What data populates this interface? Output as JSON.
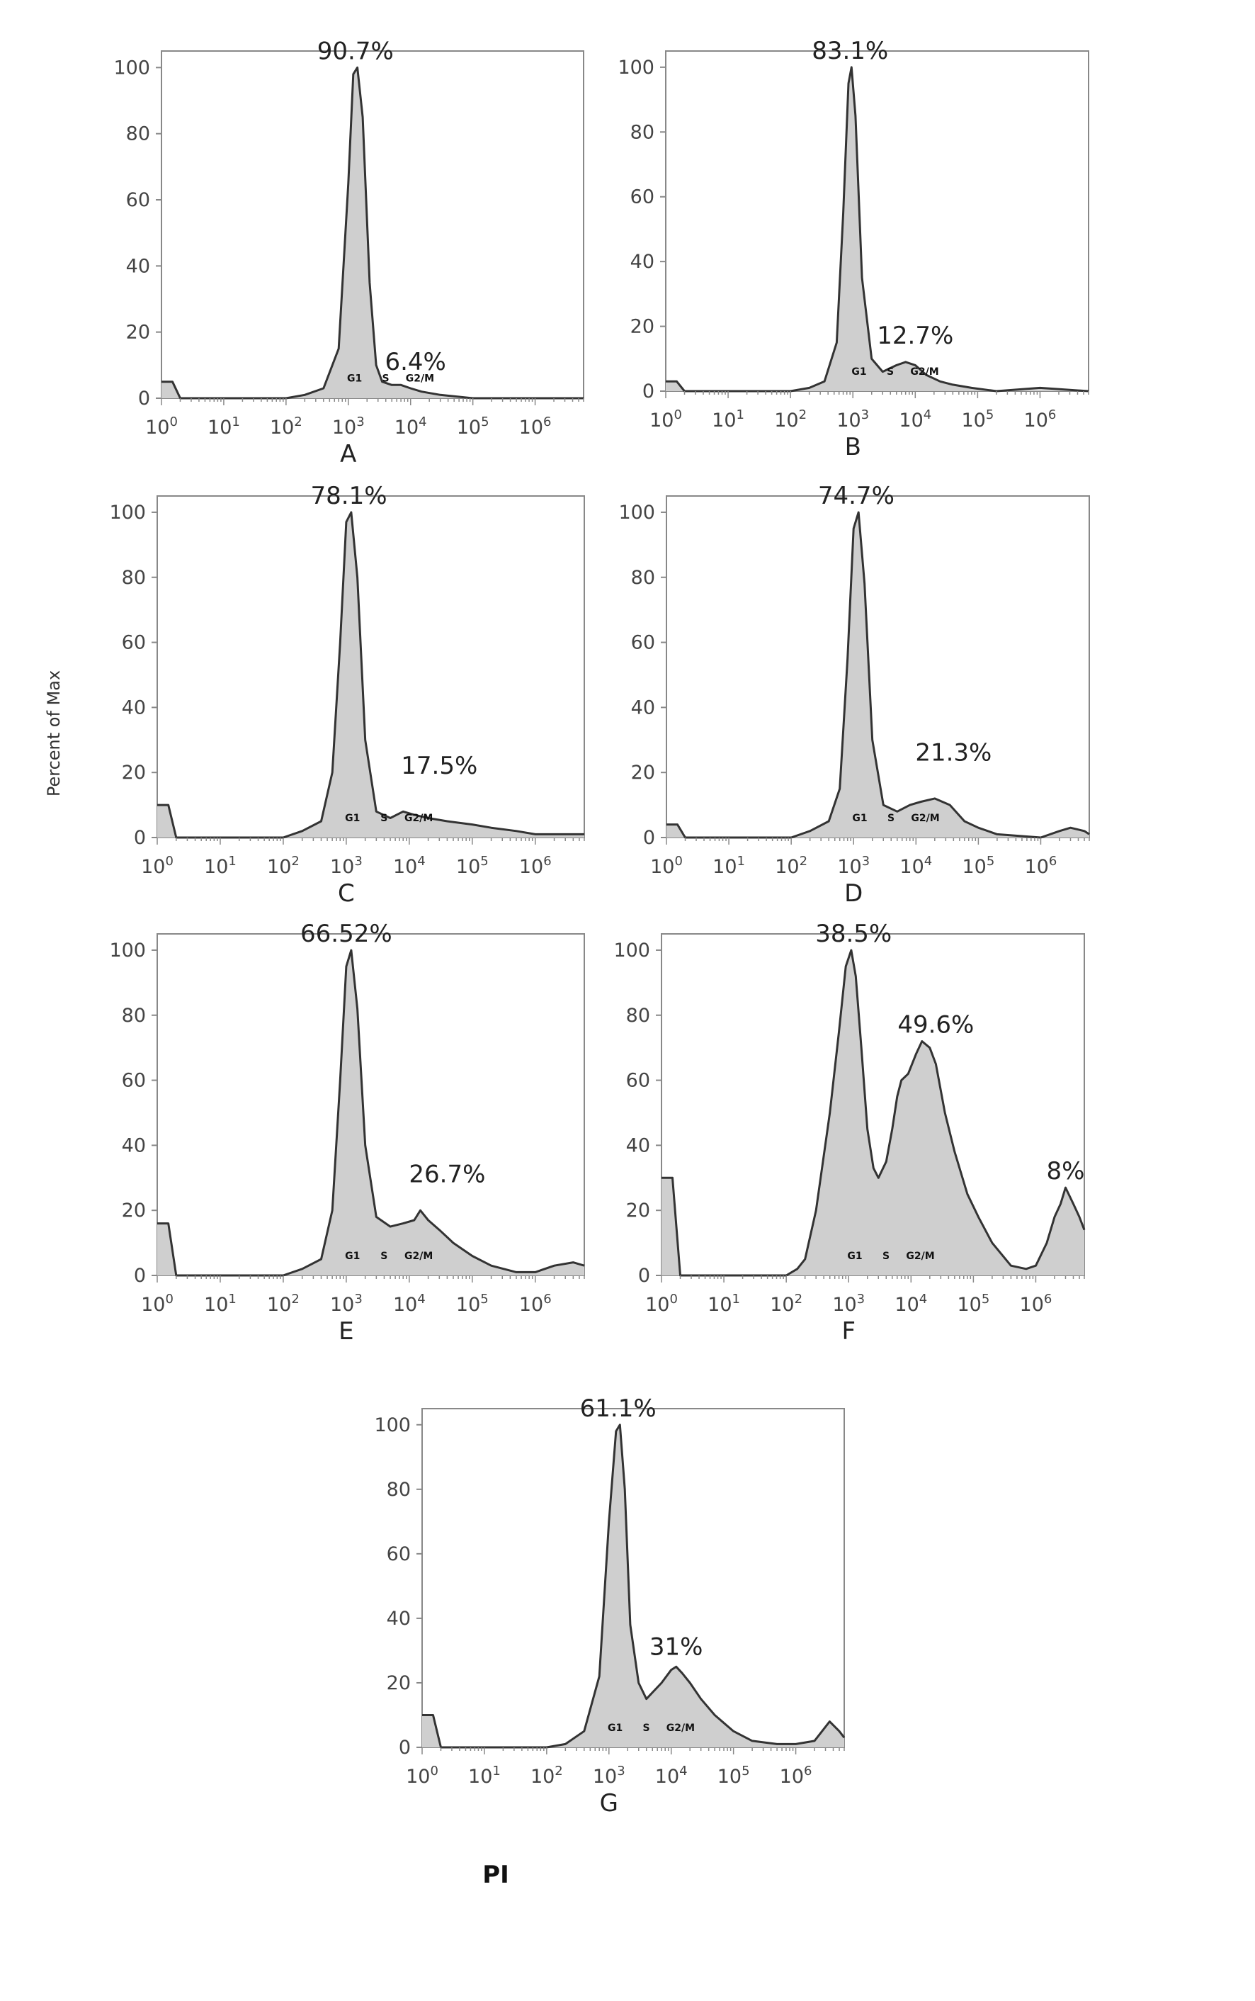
{
  "figure": {
    "y_axis_label": "Percent of Max",
    "x_axis_label": "PI"
  },
  "chart_data": [
    {
      "type": "area",
      "panel_label": "A",
      "ylim": [
        0,
        105
      ],
      "xscale": "log",
      "xlim": [
        1,
        6000000
      ],
      "yticks": [
        0,
        20,
        40,
        60,
        80,
        100
      ],
      "xticks": [
        1,
        10,
        100,
        1000,
        10000,
        100000,
        1000000
      ],
      "xtick_labels": [
        "10^0",
        "10^1",
        "10^2",
        "10^3",
        "10^4",
        "10^5",
        "10^6"
      ],
      "phase_labels": [
        "G1",
        "S",
        "G2/M"
      ],
      "annotations": [
        {
          "text": "90.7%",
          "x": 1300,
          "y": 100
        },
        {
          "text": "6.4%",
          "x": 12000,
          "y": 6
        }
      ],
      "x": [
        1,
        1.5,
        2,
        20,
        100,
        200,
        400,
        700,
        1000,
        1200,
        1400,
        1700,
        2200,
        2800,
        3500,
        5000,
        7000,
        10000,
        15000,
        30000,
        100000,
        1000000,
        6000000
      ],
      "y": [
        5,
        5,
        0,
        0,
        0,
        1,
        3,
        15,
        65,
        98,
        100,
        85,
        35,
        10,
        5,
        4,
        4,
        3,
        2,
        1,
        0,
        0,
        0
      ]
    },
    {
      "type": "area",
      "panel_label": "B",
      "ylim": [
        0,
        105
      ],
      "xscale": "log",
      "xlim": [
        1,
        6000000
      ],
      "yticks": [
        0,
        20,
        40,
        60,
        80,
        100
      ],
      "xticks": [
        1,
        10,
        100,
        1000,
        10000,
        100000,
        1000000
      ],
      "xtick_labels": [
        "10^0",
        "10^1",
        "10^2",
        "10^3",
        "10^4",
        "10^5",
        "10^6"
      ],
      "phase_labels": [
        "G1",
        "S",
        "G2/M"
      ],
      "annotations": [
        {
          "text": "83.1%",
          "x": 900,
          "y": 100
        },
        {
          "text": "12.7%",
          "x": 10000,
          "y": 12
        }
      ],
      "x": [
        1,
        1.5,
        2,
        20,
        100,
        200,
        350,
        550,
        700,
        850,
        950,
        1100,
        1400,
        2000,
        3000,
        5000,
        7000,
        10000,
        15000,
        25000,
        40000,
        80000,
        200000,
        1000000,
        6000000
      ],
      "y": [
        3,
        3,
        0,
        0,
        0,
        1,
        3,
        15,
        55,
        95,
        100,
        85,
        35,
        10,
        6,
        8,
        9,
        8,
        5,
        3,
        2,
        1,
        0,
        1,
        0
      ]
    },
    {
      "type": "area",
      "panel_label": "C",
      "ylim": [
        0,
        105
      ],
      "xscale": "log",
      "xlim": [
        1,
        6000000
      ],
      "yticks": [
        0,
        20,
        40,
        60,
        80,
        100
      ],
      "xticks": [
        1,
        10,
        100,
        1000,
        10000,
        100000,
        1000000
      ],
      "xtick_labels": [
        "10^0",
        "10^1",
        "10^2",
        "10^3",
        "10^4",
        "10^5",
        "10^6"
      ],
      "phase_labels": [
        "G1",
        "S",
        "G2/M"
      ],
      "annotations": [
        {
          "text": "78.1%",
          "x": 1100,
          "y": 100
        },
        {
          "text": "17.5%",
          "x": 30000,
          "y": 17
        }
      ],
      "x": [
        1,
        1.5,
        2,
        20,
        100,
        200,
        400,
        600,
        800,
        1000,
        1200,
        1500,
        2000,
        3000,
        5000,
        8000,
        12000,
        20000,
        40000,
        100000,
        200000,
        500000,
        1000000,
        6000000
      ],
      "y": [
        10,
        10,
        0,
        0,
        0,
        2,
        5,
        20,
        60,
        97,
        100,
        80,
        30,
        8,
        6,
        8,
        7,
        6,
        5,
        4,
        3,
        2,
        1,
        1
      ]
    },
    {
      "type": "area",
      "panel_label": "D",
      "ylim": [
        0,
        105
      ],
      "xscale": "log",
      "xlim": [
        1,
        6000000
      ],
      "yticks": [
        0,
        20,
        40,
        60,
        80,
        100
      ],
      "xticks": [
        1,
        10,
        100,
        1000,
        10000,
        100000,
        1000000
      ],
      "xtick_labels": [
        "10^0",
        "10^1",
        "10^2",
        "10^3",
        "10^4",
        "10^5",
        "10^6"
      ],
      "phase_labels": [
        "G1",
        "S",
        "G2/M"
      ],
      "annotations": [
        {
          "text": "74.7%",
          "x": 1100,
          "y": 100
        },
        {
          "text": "21.3%",
          "x": 40000,
          "y": 21
        }
      ],
      "x": [
        1,
        1.5,
        2,
        20,
        100,
        200,
        400,
        600,
        800,
        1000,
        1200,
        1500,
        2000,
        3000,
        5000,
        8000,
        12000,
        20000,
        35000,
        60000,
        100000,
        200000,
        1000000,
        2000000,
        3000000,
        5000000,
        6000000
      ],
      "y": [
        4,
        4,
        0,
        0,
        0,
        2,
        5,
        15,
        55,
        95,
        100,
        78,
        30,
        10,
        8,
        10,
        11,
        12,
        10,
        5,
        3,
        1,
        0,
        2,
        3,
        2,
        1
      ]
    },
    {
      "type": "area",
      "panel_label": "E",
      "ylim": [
        0,
        105
      ],
      "xscale": "log",
      "xlim": [
        1,
        6000000
      ],
      "yticks": [
        0,
        20,
        40,
        60,
        80,
        100
      ],
      "xticks": [
        1,
        10,
        100,
        1000,
        10000,
        100000,
        1000000
      ],
      "xtick_labels": [
        "10^0",
        "10^1",
        "10^2",
        "10^3",
        "10^4",
        "10^5",
        "10^6"
      ],
      "phase_labels": [
        "G1",
        "S",
        "G2/M"
      ],
      "annotations": [
        {
          "text": "66.52%",
          "x": 1000,
          "y": 100
        },
        {
          "text": "26.7%",
          "x": 40000,
          "y": 26
        }
      ],
      "x": [
        1,
        1.5,
        2,
        20,
        100,
        200,
        400,
        600,
        800,
        1000,
        1200,
        1500,
        2000,
        3000,
        5000,
        8000,
        12000,
        15000,
        20000,
        30000,
        50000,
        100000,
        200000,
        500000,
        1000000,
        2000000,
        4000000,
        6000000
      ],
      "y": [
        16,
        16,
        0,
        0,
        0,
        2,
        5,
        20,
        60,
        95,
        100,
        82,
        40,
        18,
        15,
        16,
        17,
        20,
        17,
        14,
        10,
        6,
        3,
        1,
        1,
        3,
        4,
        3
      ]
    },
    {
      "type": "area",
      "panel_label": "F",
      "ylim": [
        0,
        105
      ],
      "xscale": "log",
      "xlim": [
        1,
        6000000
      ],
      "yticks": [
        0,
        20,
        40,
        60,
        80,
        100
      ],
      "xticks": [
        1,
        10,
        100,
        1000,
        10000,
        100000,
        1000000
      ],
      "xtick_labels": [
        "10^0",
        "10^1",
        "10^2",
        "10^3",
        "10^4",
        "10^5",
        "10^6"
      ],
      "phase_labels": [
        "G1",
        "S",
        "G2/M"
      ],
      "annotations": [
        {
          "text": "38.5%",
          "x": 1200,
          "y": 100
        },
        {
          "text": "49.6%",
          "x": 25000,
          "y": 72
        },
        {
          "text": "8%",
          "x": 3000000,
          "y": 27
        }
      ],
      "x": [
        1,
        1.5,
        2,
        20,
        100,
        150,
        200,
        300,
        500,
        700,
        900,
        1100,
        1300,
        1600,
        2000,
        2500,
        3000,
        4000,
        5000,
        6000,
        7000,
        9000,
        12000,
        15000,
        20000,
        25000,
        35000,
        50000,
        80000,
        120000,
        200000,
        400000,
        700000,
        1000000,
        1500000,
        2000000,
        2500000,
        3000000,
        4000000,
        5000000,
        6000000
      ],
      "y": [
        30,
        30,
        0,
        0,
        0,
        2,
        5,
        20,
        50,
        75,
        95,
        100,
        92,
        70,
        45,
        33,
        30,
        35,
        45,
        55,
        60,
        62,
        68,
        72,
        70,
        65,
        50,
        38,
        25,
        18,
        10,
        3,
        2,
        3,
        10,
        18,
        22,
        27,
        22,
        18,
        14
      ]
    },
    {
      "type": "area",
      "panel_label": "G",
      "ylim": [
        0,
        105
      ],
      "xscale": "log",
      "xlim": [
        1,
        6000000
      ],
      "yticks": [
        0,
        20,
        40,
        60,
        80,
        100
      ],
      "xticks": [
        1,
        10,
        100,
        1000,
        10000,
        100000,
        1000000
      ],
      "xtick_labels": [
        "10^0",
        "10^1",
        "10^2",
        "10^3",
        "10^4",
        "10^5",
        "10^6"
      ],
      "phase_labels": [
        "G1",
        "S",
        "G2/M"
      ],
      "annotations": [
        {
          "text": "61.1%",
          "x": 1400,
          "y": 100
        },
        {
          "text": "31%",
          "x": 12000,
          "y": 26
        }
      ],
      "x": [
        1,
        1.5,
        2,
        20,
        100,
        200,
        400,
        700,
        1000,
        1300,
        1500,
        1800,
        2200,
        3000,
        4000,
        5000,
        7000,
        10000,
        12000,
        15000,
        20000,
        30000,
        50000,
        100000,
        200000,
        500000,
        1000000,
        2000000,
        3500000,
        5000000,
        6000000
      ],
      "y": [
        10,
        10,
        0,
        0,
        0,
        1,
        5,
        22,
        70,
        98,
        100,
        80,
        38,
        20,
        15,
        17,
        20,
        24,
        25,
        23,
        20,
        15,
        10,
        5,
        2,
        1,
        1,
        2,
        8,
        5,
        3
      ]
    }
  ]
}
